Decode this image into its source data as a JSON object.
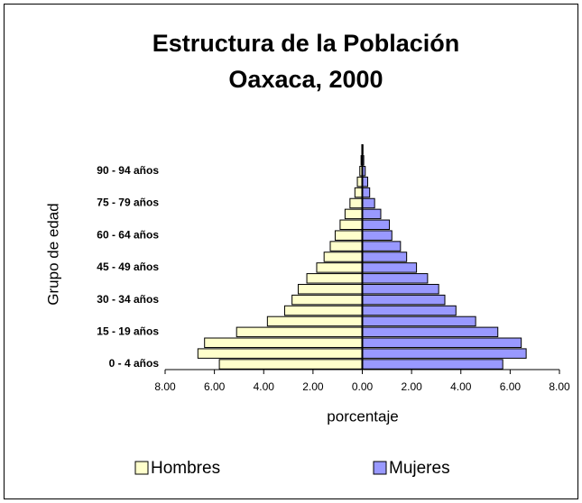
{
  "chart_data": {
    "type": "pyramid",
    "title": [
      "Estructura de la Población",
      "Oaxaca, 2000"
    ],
    "x_label": "porcentaje",
    "y_label": "Grupo de edad",
    "categories": [
      "0  -  4  años",
      null,
      null,
      "15 - 19 años",
      null,
      null,
      "30 - 34 años",
      null,
      null,
      "45 - 49 años",
      null,
      null,
      "60 - 64 años",
      null,
      null,
      "75 - 79 años",
      null,
      null,
      "90 - 94 años",
      null,
      null
    ],
    "series": [
      {
        "name": "Hombres",
        "color": "#ffffcc",
        "values": [
          -5.8,
          -6.67,
          -6.4,
          -5.1,
          -3.85,
          -3.15,
          -2.85,
          -2.6,
          -2.25,
          -1.85,
          -1.55,
          -1.3,
          -1.1,
          -0.9,
          -0.7,
          -0.5,
          -0.3,
          -0.2,
          -0.1,
          -0.05,
          -0.02
        ]
      },
      {
        "name": "Mujeres",
        "color": "#9999ff",
        "values": [
          5.7,
          6.65,
          6.45,
          5.5,
          4.6,
          3.8,
          3.35,
          3.1,
          2.65,
          2.2,
          1.8,
          1.55,
          1.2,
          1.1,
          0.75,
          0.5,
          0.3,
          0.22,
          0.12,
          0.06,
          0.03
        ]
      }
    ],
    "xlim": [
      -8,
      8
    ],
    "xticks": [
      {
        "value": -8,
        "label": "8.00"
      },
      {
        "value": -6,
        "label": "6.00"
      },
      {
        "value": -4,
        "label": "4.00"
      },
      {
        "value": -2,
        "label": "2.00"
      },
      {
        "value": 0,
        "label": "0.00"
      },
      {
        "value": 2,
        "label": "2.00"
      },
      {
        "value": 4,
        "label": "4.00"
      },
      {
        "value": 6,
        "label": "6.00"
      },
      {
        "value": 8,
        "label": "8.00"
      }
    ],
    "legend": "bottom"
  }
}
